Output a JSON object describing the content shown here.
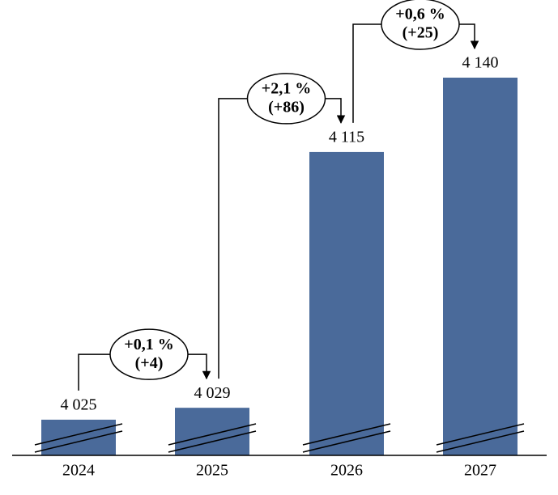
{
  "chart_data": {
    "type": "bar",
    "categories": [
      "2024",
      "2025",
      "2026",
      "2027"
    ],
    "values": [
      4025,
      4029,
      4115,
      4140
    ],
    "value_labels": [
      "4 025",
      "4 029",
      "4 115",
      "4 140"
    ],
    "color": "#4a6a9a",
    "ylim": [
      4013,
      4140
    ],
    "annotations": [
      {
        "change_pct": "+0,1 %",
        "change_abs": "(+4)"
      },
      {
        "change_pct": "+2,1 %",
        "change_abs": "(+86)"
      },
      {
        "change_pct": "+0,6 %",
        "change_abs": "(+25)"
      }
    ]
  }
}
